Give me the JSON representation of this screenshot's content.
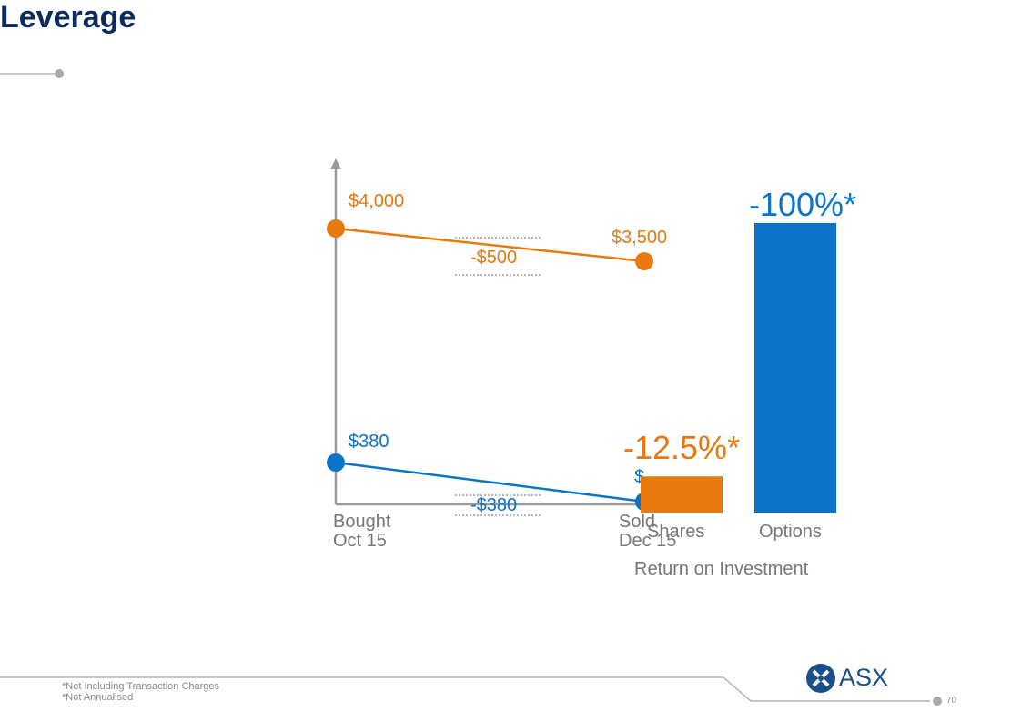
{
  "slide": {
    "title": "Leverage",
    "page_number": "70"
  },
  "chart_data": [
    {
      "type": "line",
      "categories": [
        "Bought\nOct 15",
        "Sold\nDec 15"
      ],
      "series": [
        {
          "name": "",
          "values": [
            4000,
            3500
          ],
          "labels": [
            "$4,000",
            "$3,500"
          ],
          "color": "#e8790f"
        },
        {
          "name": "",
          "values": [
            380,
            0
          ],
          "labels": [
            "$380",
            "$"
          ],
          "color": "#0a74c8"
        }
      ],
      "annotations": [
        "-$500",
        "-$380"
      ],
      "x_labels": [
        [
          "Bought",
          "Oct 15"
        ],
        [
          "Sold",
          "Dec 15"
        ]
      ]
    },
    {
      "type": "bar",
      "categories": [
        "Shares",
        "Options"
      ],
      "values": [
        -12.5,
        -100
      ],
      "value_labels": [
        "-12.5%*",
        "-100%*"
      ],
      "colors": [
        "#e8790f",
        "#0a74c8"
      ],
      "xlabel": "Return on Investment"
    }
  ],
  "footnotes": [
    "*Not Including Transaction Charges",
    "*Not Annualised"
  ],
  "logo": {
    "text": "ASX",
    "icon": "asx-logo-icon"
  },
  "colors": {
    "orange": "#e8790f",
    "blue": "#0a74c8",
    "title": "#0b2a5e",
    "axis": "#9a9a9a"
  }
}
